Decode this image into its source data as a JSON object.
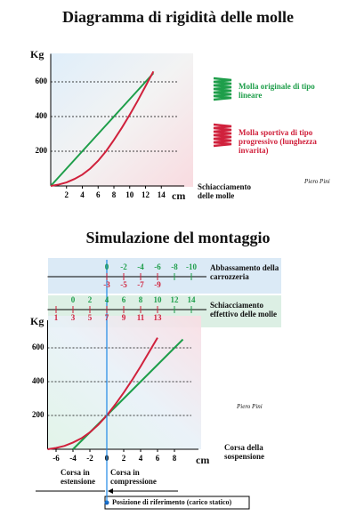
{
  "chart_data": [
    {
      "type": "line",
      "title": "Diagramma di rigidità delle molle",
      "y_label": "Kg",
      "x_unit": "cm",
      "x_label": "Schiacciamento delle molle",
      "x": [
        0,
        1,
        2,
        3,
        4,
        5,
        6,
        7,
        8,
        9,
        10,
        11,
        12,
        13
      ],
      "series": [
        {
          "name": "Molla originale di tipo lineare",
          "color": "#1e9e4a",
          "values": [
            0,
            50,
            100,
            150,
            200,
            250,
            300,
            350,
            400,
            450,
            500,
            550,
            600,
            650
          ]
        },
        {
          "name": "Molla sportiva di tipo progressivo (lunghezza invarita)",
          "color": "#d0213c",
          "values": [
            0,
            8,
            20,
            40,
            65,
            100,
            145,
            200,
            265,
            335,
            410,
            490,
            575,
            660
          ]
        }
      ],
      "xlim": [
        0,
        16
      ],
      "xticks": [
        2,
        4,
        6,
        8,
        10,
        12,
        14
      ],
      "ylim": [
        0,
        700
      ],
      "yticks": [
        200,
        400,
        600
      ],
      "grid": true,
      "annotation": "Piero Pini"
    },
    {
      "type": "line",
      "title": "Simulazione del montaggio",
      "y_label": "Kg",
      "x_unit": "cm",
      "x_label": "Corsa della sospensione",
      "x": [
        -7,
        -6,
        -5,
        -4,
        -3,
        -2,
        -1,
        0,
        1,
        2,
        3,
        4,
        5,
        6,
        7,
        8,
        9
      ],
      "series": [
        {
          "name": "Molla originale di tipo lineare",
          "color": "#1e9e4a",
          "values": [
            null,
            null,
            null,
            0,
            50,
            100,
            150,
            200,
            250,
            300,
            350,
            400,
            450,
            500,
            550,
            600,
            650
          ]
        },
        {
          "name": "Molla sportiva di tipo progressivo (lunghezza invarita)",
          "color": "#d0213c",
          "values": [
            0,
            8,
            20,
            40,
            65,
            100,
            145,
            200,
            265,
            335,
            410,
            490,
            575,
            660,
            null,
            null,
            null
          ]
        }
      ],
      "xlim": [
        -7,
        10
      ],
      "xticks": [
        -6,
        -4,
        -2,
        0,
        2,
        4,
        6,
        8
      ],
      "ylim": [
        0,
        700
      ],
      "yticks": [
        200,
        400,
        600
      ],
      "grid": true,
      "scales": [
        {
          "label": "Abbassamento della carrozzeria",
          "green_ticks": [
            0,
            -2,
            -4,
            -6,
            -8,
            -10
          ],
          "green_xlim": [
            7,
            -10
          ],
          "red_ticks": [
            -3,
            -5,
            -7,
            -9
          ],
          "red_xlim": [
            4,
            -13
          ]
        },
        {
          "label": "Schiacciamento effettivo delle molle",
          "green_ticks": [
            0,
            2,
            4,
            6,
            8,
            10,
            12,
            14
          ],
          "green_xlim": [
            -3,
            14
          ],
          "red_ticks": [
            1,
            3,
            5,
            7,
            9,
            11,
            13
          ],
          "red_xlim": [
            0,
            17
          ]
        }
      ],
      "extension_label": "Corsa in estensione",
      "compression_label": "Corsa in compressione",
      "reference_label": "Posizione di riferimento (carico statico)",
      "annotation": "Piero Pini"
    }
  ]
}
